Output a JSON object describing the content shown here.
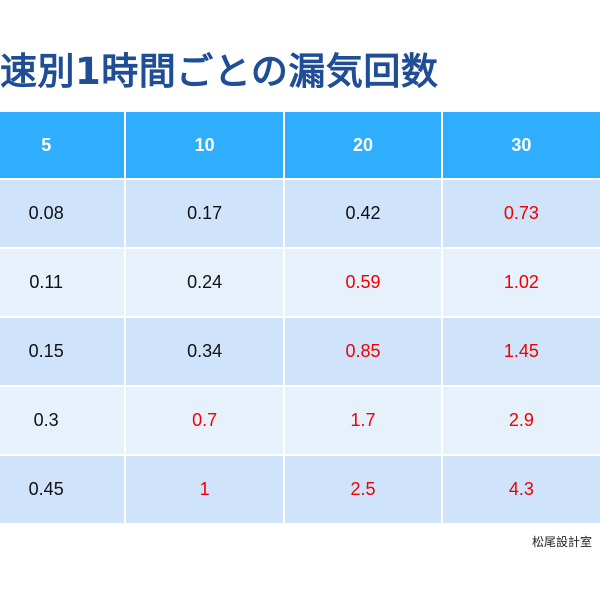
{
  "title": "速別1時間ごとの漏気回数",
  "table": {
    "headers": [
      "5",
      "10",
      "20",
      "30",
      ""
    ],
    "rows": [
      [
        {
          "value": "0.08",
          "red": false
        },
        {
          "value": "0.17",
          "red": false
        },
        {
          "value": "0.42",
          "red": false
        },
        {
          "value": "0.73",
          "red": true
        },
        {
          "value": "",
          "red": false
        }
      ],
      [
        {
          "value": "0.11",
          "red": false
        },
        {
          "value": "0.24",
          "red": false
        },
        {
          "value": "0.59",
          "red": true
        },
        {
          "value": "1.02",
          "red": true
        },
        {
          "value": "",
          "red": false
        }
      ],
      [
        {
          "value": "0.15",
          "red": false
        },
        {
          "value": "0.34",
          "red": false
        },
        {
          "value": "0.85",
          "red": true
        },
        {
          "value": "1.45",
          "red": true
        },
        {
          "value": "",
          "red": false
        }
      ],
      [
        {
          "value": "0.3",
          "red": false
        },
        {
          "value": "0.7",
          "red": true
        },
        {
          "value": "1.7",
          "red": true
        },
        {
          "value": "2.9",
          "red": true
        },
        {
          "value": "",
          "red": false
        }
      ],
      [
        {
          "value": "0.45",
          "red": false
        },
        {
          "value": "1",
          "red": true
        },
        {
          "value": "2.5",
          "red": true
        },
        {
          "value": "4.3",
          "red": true
        },
        {
          "value": "",
          "red": false
        }
      ]
    ]
  },
  "credit": "松尾設計室",
  "colors": {
    "title": "#1f4e96",
    "header_bg": "#2eaefd",
    "row_dark": "#cfe3fa",
    "row_light": "#e6f1fc",
    "highlight_text": "#f00000"
  }
}
